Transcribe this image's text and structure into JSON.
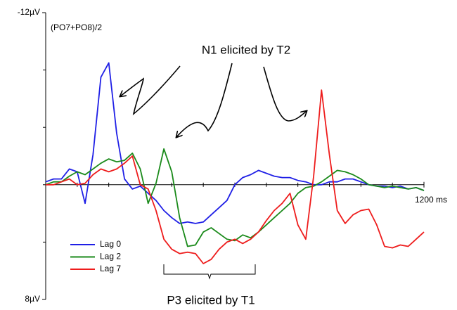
{
  "chart_data": {
    "type": "line",
    "subtitle": "(PO7+PO8)/2",
    "annotations": [
      "N1 elicited by T2",
      "P3 elicited by T1"
    ],
    "x": [
      0,
      25,
      50,
      75,
      100,
      125,
      150,
      175,
      200,
      225,
      250,
      275,
      300,
      325,
      350,
      375,
      400,
      425,
      450,
      475,
      500,
      525,
      550,
      575,
      600,
      625,
      650,
      675,
      700,
      725,
      750,
      775,
      800,
      825,
      850,
      875,
      900,
      925,
      950,
      975,
      1000,
      1025,
      1050,
      1075,
      1100,
      1125,
      1150,
      1175,
      1200
    ],
    "xlim": [
      0,
      1200
    ],
    "xticks": [
      {
        "value": 1200,
        "label": "1200 ms"
      }
    ],
    "xminor_ticks": [
      0,
      100,
      200,
      300,
      400,
      500,
      600,
      700,
      800,
      900,
      1000,
      1100
    ],
    "ylim": [
      -12,
      8
    ],
    "y_negative_up": true,
    "yticks": [
      {
        "value": -12,
        "label": "-12µV"
      },
      {
        "value": 8,
        "label": "8µV"
      }
    ],
    "yminor_ticks": [
      -8,
      -4,
      0,
      4
    ],
    "legend": "lower left",
    "series": [
      {
        "name": "Lag 0",
        "color": "#1f1fe6",
        "values": [
          -0.2,
          -0.4,
          -0.4,
          -1.1,
          -0.9,
          1.3,
          -2.1,
          -7.5,
          -8.5,
          -3.6,
          -0.4,
          0.3,
          0.1,
          0.6,
          1.1,
          1.8,
          2.3,
          2.7,
          2.6,
          2.7,
          2.6,
          2.1,
          1.6,
          1.1,
          0,
          -0.5,
          -0.7,
          -1.0,
          -0.8,
          -0.6,
          -0.5,
          -0.5,
          -0.3,
          -0.2,
          0,
          0,
          -0.2,
          -0.2,
          -0.4,
          -0.4,
          -0.2,
          0,
          0.1,
          0.1,
          0.2,
          0.1,
          0.3,
          0.2,
          0.4
        ]
      },
      {
        "name": "Lag 2",
        "color": "#1a8a1a",
        "values": [
          0,
          -0.2,
          -0.2,
          -0.6,
          -0.9,
          -0.7,
          -1.1,
          -1.5,
          -1.8,
          -1.6,
          -1.7,
          -2.2,
          -1.1,
          1.3,
          -0.1,
          -2.5,
          -0.9,
          2.3,
          4.3,
          4.2,
          3.3,
          3.0,
          3.4,
          3.8,
          3.9,
          3.5,
          3.7,
          3.3,
          2.8,
          2.3,
          1.8,
          1.3,
          0.6,
          0.2,
          0.1,
          -0.2,
          -0.6,
          -1.0,
          -0.9,
          -0.7,
          -0.4,
          0,
          0.1,
          0.2,
          0.1,
          0.2,
          0.3,
          0.2,
          0.4
        ]
      },
      {
        "name": "Lag 7",
        "color": "#ee1c1c",
        "values": [
          0,
          0,
          -0.2,
          -0.4,
          0,
          -0.1,
          -0.7,
          -1.1,
          -0.9,
          -1.1,
          -1.5,
          -2.0,
          0,
          0.3,
          1.8,
          3.8,
          4.5,
          4.8,
          4.7,
          4.8,
          5.5,
          5.2,
          4.5,
          4.0,
          3.8,
          4.1,
          3.8,
          3.3,
          2.5,
          1.8,
          1.3,
          0.6,
          2.8,
          3.8,
          -0.6,
          -6.6,
          -2.1,
          1.8,
          2.7,
          2.1,
          1.8,
          1.7,
          2.8,
          4.3,
          4.4,
          4.2,
          4.3,
          3.8,
          3.3
        ]
      }
    ]
  }
}
